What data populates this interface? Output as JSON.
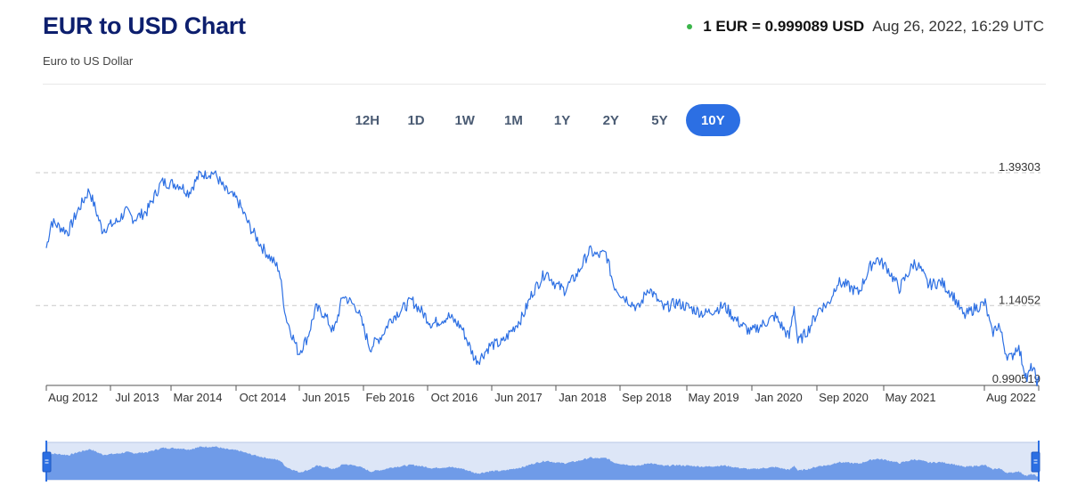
{
  "header": {
    "title": "EUR to USD Chart",
    "subtitle": "Euro to US Dollar",
    "rate_text": "1 EUR = 0.999089 USD",
    "timestamp": "Aug 26, 2022, 16:29 UTC",
    "status_dot_color": "#3bb54a"
  },
  "ranges": {
    "buttons": [
      "12H",
      "1D",
      "1W",
      "1M",
      "1Y",
      "2Y",
      "5Y",
      "10Y"
    ],
    "selected": "10Y",
    "active_color": "#2c6fe3"
  },
  "chart_data": {
    "type": "line",
    "title": "",
    "xlabel": "",
    "ylabel": "",
    "y_reference_labels": [
      "1.39303",
      "1.14052",
      "0.990519"
    ],
    "ylim": [
      0.9905,
      1.393
    ],
    "grid": "dashed horizontal reference lines at labeled values",
    "x_tick_labels": [
      "Aug 2012",
      "Jul 2013",
      "Mar 2014",
      "Oct 2014",
      "Jun 2015",
      "Feb 2016",
      "Oct 2016",
      "Jun 2017",
      "Jan 2018",
      "Sep 2018",
      "May 2019",
      "Jan 2020",
      "Sep 2020",
      "May 2021",
      "Aug 2022"
    ],
    "line_color": "#2c6fe3",
    "navigator_fill": "#6f9be8",
    "navigator_background": "#dde6f7",
    "series": [
      {
        "points": [
          [
            "2012-08-27",
            1.25
          ],
          [
            "2012-09-15",
            1.3
          ],
          [
            "2012-11-15",
            1.28
          ],
          [
            "2012-12-20",
            1.32
          ],
          [
            "2013-02-01",
            1.36
          ],
          [
            "2013-03-20",
            1.285
          ],
          [
            "2013-05-15",
            1.3
          ],
          [
            "2013-06-15",
            1.32
          ],
          [
            "2013-07-15",
            1.305
          ],
          [
            "2013-09-01",
            1.32
          ],
          [
            "2013-10-25",
            1.375
          ],
          [
            "2013-12-31",
            1.37
          ],
          [
            "2014-02-01",
            1.355
          ],
          [
            "2014-03-15",
            1.39
          ],
          [
            "2014-05-08",
            1.393
          ],
          [
            "2014-06-15",
            1.36
          ],
          [
            "2014-08-01",
            1.34
          ],
          [
            "2014-09-15",
            1.29
          ],
          [
            "2014-11-01",
            1.25
          ],
          [
            "2014-12-31",
            1.21
          ],
          [
            "2015-01-25",
            1.12
          ],
          [
            "2015-03-13",
            1.05
          ],
          [
            "2015-04-15",
            1.08
          ],
          [
            "2015-05-15",
            1.135
          ],
          [
            "2015-06-15",
            1.125
          ],
          [
            "2015-07-20",
            1.09
          ],
          [
            "2015-08-24",
            1.16
          ],
          [
            "2015-10-15",
            1.135
          ],
          [
            "2015-12-01",
            1.06
          ],
          [
            "2016-01-15",
            1.085
          ],
          [
            "2016-02-15",
            1.115
          ],
          [
            "2016-05-03",
            1.15
          ],
          [
            "2016-06-15",
            1.125
          ],
          [
            "2016-07-15",
            1.105
          ],
          [
            "2016-09-15",
            1.12
          ],
          [
            "2016-11-01",
            1.1
          ],
          [
            "2016-12-20",
            1.04
          ],
          [
            "2017-01-03",
            1.037
          ],
          [
            "2017-02-15",
            1.065
          ],
          [
            "2017-04-01",
            1.07
          ],
          [
            "2017-05-15",
            1.1
          ],
          [
            "2017-06-15",
            1.12
          ],
          [
            "2017-07-20",
            1.165
          ],
          [
            "2017-09-08",
            1.205
          ],
          [
            "2017-10-15",
            1.18
          ],
          [
            "2017-11-15",
            1.17
          ],
          [
            "2018-01-01",
            1.2
          ],
          [
            "2018-02-15",
            1.245
          ],
          [
            "2018-03-15",
            1.235
          ],
          [
            "2018-04-17",
            1.24
          ],
          [
            "2018-05-15",
            1.18
          ],
          [
            "2018-06-15",
            1.16
          ],
          [
            "2018-08-15",
            1.135
          ],
          [
            "2018-09-20",
            1.175
          ],
          [
            "2018-11-15",
            1.135
          ],
          [
            "2019-01-01",
            1.146
          ],
          [
            "2019-04-15",
            1.125
          ],
          [
            "2019-06-25",
            1.14
          ],
          [
            "2019-08-15",
            1.11
          ],
          [
            "2019-10-01",
            1.09
          ],
          [
            "2019-11-15",
            1.105
          ],
          [
            "2019-12-31",
            1.12
          ],
          [
            "2020-02-20",
            1.08
          ],
          [
            "2020-03-09",
            1.14
          ],
          [
            "2020-03-23",
            1.07
          ],
          [
            "2020-05-01",
            1.095
          ],
          [
            "2020-06-10",
            1.135
          ],
          [
            "2020-07-15",
            1.145
          ],
          [
            "2020-08-15",
            1.185
          ],
          [
            "2020-09-15",
            1.18
          ],
          [
            "2020-11-01",
            1.165
          ],
          [
            "2020-12-15",
            1.215
          ],
          [
            "2021-01-06",
            1.23
          ],
          [
            "2021-02-15",
            1.212
          ],
          [
            "2021-03-31",
            1.173
          ],
          [
            "2021-05-25",
            1.222
          ],
          [
            "2021-06-15",
            1.212
          ],
          [
            "2021-07-15",
            1.18
          ],
          [
            "2021-09-01",
            1.185
          ],
          [
            "2021-10-15",
            1.16
          ],
          [
            "2021-11-24",
            1.12
          ],
          [
            "2022-01-01",
            1.135
          ],
          [
            "2022-02-10",
            1.145
          ],
          [
            "2022-03-07",
            1.088
          ],
          [
            "2022-04-01",
            1.105
          ],
          [
            "2022-04-28",
            1.05
          ],
          [
            "2022-05-15",
            1.04
          ],
          [
            "2022-06-10",
            1.065
          ],
          [
            "2022-07-14",
            1.001
          ],
          [
            "2022-08-01",
            1.025
          ],
          [
            "2022-08-23",
            0.993
          ],
          [
            "2022-08-26",
            0.999
          ]
        ]
      }
    ]
  }
}
